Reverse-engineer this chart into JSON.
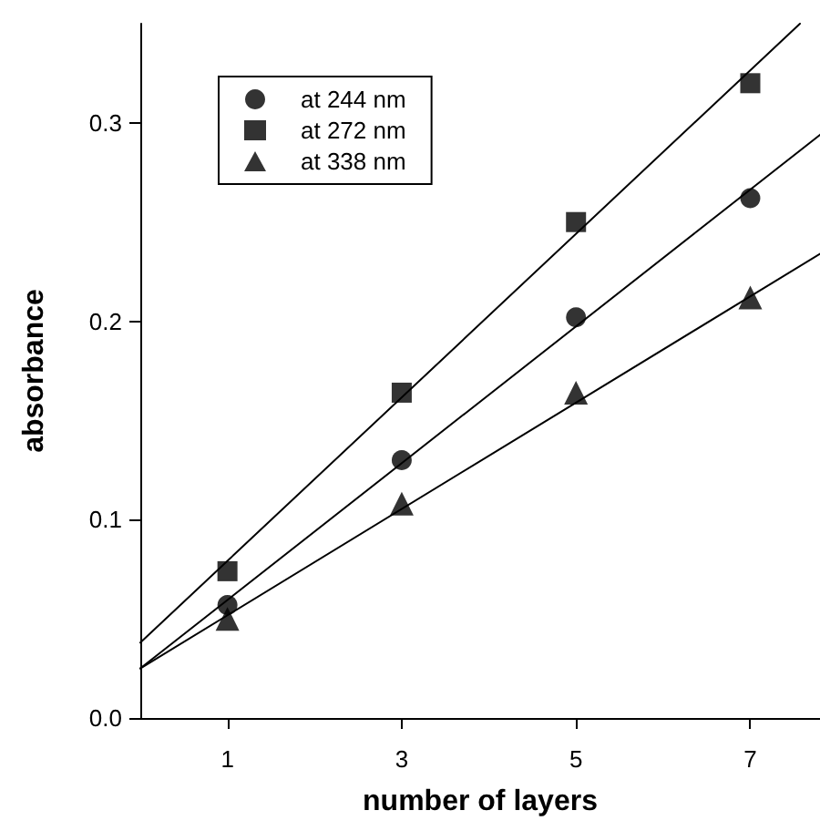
{
  "chart_data": {
    "type": "scatter",
    "xlabel": "number of layers",
    "ylabel": "absorbance",
    "xlim": [
      0,
      7.8
    ],
    "ylim": [
      0,
      0.35
    ],
    "xticks": [
      1,
      3,
      5,
      7
    ],
    "yticks": [
      {
        "value": 0,
        "label": "0.0"
      },
      0.1,
      0.2,
      0.3
    ],
    "grid": false,
    "legend": "top left",
    "series": [
      {
        "name": "at 244 nm",
        "color": "#000000",
        "marker": "circle",
        "x": [
          1,
          3,
          5,
          7
        ],
        "values": [
          0.057,
          0.13,
          0.202,
          0.262
        ]
      },
      {
        "name": "at 272 nm",
        "color": "#000000",
        "marker": "square",
        "x": [
          1,
          3,
          5,
          7
        ],
        "values": [
          0.074,
          0.164,
          0.25,
          0.32
        ]
      },
      {
        "name": "at 338 nm",
        "color": "#000000",
        "marker": "triangle",
        "x": [
          1,
          3,
          5,
          7
        ],
        "values": [
          0.05,
          0.108,
          0.164,
          0.212
        ]
      },
      {
        "type": "line",
        "color": "#000000",
        "marker": "none",
        "line_style": "solid",
        "x": [
          0,
          7.8
        ],
        "values": [
          0.025,
          0.294
        ]
      },
      {
        "type": "line",
        "color": "#000000",
        "marker": "none",
        "line_style": "solid",
        "x": [
          0,
          7.57
        ],
        "values": [
          0.038,
          0.35
        ]
      },
      {
        "type": "line",
        "color": "#000000",
        "marker": "none",
        "line_style": "solid",
        "x": [
          0,
          7.8
        ],
        "values": [
          0.025,
          0.234
        ]
      }
    ]
  }
}
